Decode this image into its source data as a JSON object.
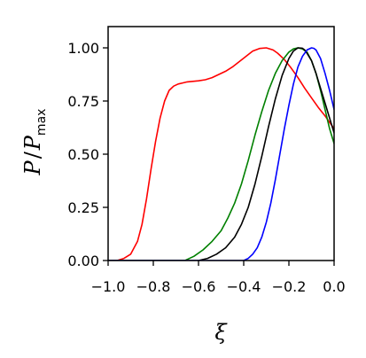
{
  "chart_data": {
    "type": "line",
    "xlabel": "ξ",
    "ylabel": {
      "main": "P",
      "sep": "/",
      "denom": "P",
      "sub": "max"
    },
    "xlim": [
      -1.0,
      0.0
    ],
    "ylim": [
      0.0,
      1.1
    ],
    "grid": false,
    "xticks": [
      {
        "value": -1.0,
        "label": "−1.0"
      },
      {
        "value": -0.8,
        "label": "−0.8"
      },
      {
        "value": -0.6,
        "label": "−0.6"
      },
      {
        "value": -0.4,
        "label": "−0.4"
      },
      {
        "value": -0.2,
        "label": "−0.2"
      },
      {
        "value": 0.0,
        "label": "0.0"
      }
    ],
    "yticks": [
      {
        "value": 0.0,
        "label": "0.00"
      },
      {
        "value": 0.25,
        "label": "0.25"
      },
      {
        "value": 0.5,
        "label": "0.50"
      },
      {
        "value": 0.75,
        "label": "0.75"
      },
      {
        "value": 1.0,
        "label": "1.00"
      }
    ],
    "series": [
      {
        "color": "#ff0000",
        "x": [
          -1.0,
          -0.96,
          -0.93,
          -0.9,
          -0.87,
          -0.85,
          -0.83,
          -0.81,
          -0.79,
          -0.77,
          -0.75,
          -0.73,
          -0.71,
          -0.69,
          -0.67,
          -0.65,
          -0.63,
          -0.6,
          -0.57,
          -0.54,
          -0.51,
          -0.48,
          -0.45,
          -0.42,
          -0.39,
          -0.36,
          -0.33,
          -0.3,
          -0.27,
          -0.25,
          -0.22,
          -0.19,
          -0.16,
          -0.13,
          -0.1,
          -0.07,
          -0.04,
          -0.02,
          0.0
        ],
        "y": [
          0.0,
          0.0,
          0.01,
          0.03,
          0.09,
          0.17,
          0.29,
          0.43,
          0.56,
          0.67,
          0.75,
          0.8,
          0.82,
          0.83,
          0.835,
          0.84,
          0.842,
          0.845,
          0.85,
          0.86,
          0.875,
          0.89,
          0.91,
          0.935,
          0.96,
          0.985,
          0.997,
          1.0,
          0.99,
          0.975,
          0.945,
          0.905,
          0.86,
          0.81,
          0.765,
          0.72,
          0.68,
          0.65,
          0.62
        ]
      },
      {
        "color": "#008000",
        "x": [
          -1.0,
          -0.66,
          -0.62,
          -0.58,
          -0.54,
          -0.5,
          -0.47,
          -0.44,
          -0.41,
          -0.38,
          -0.35,
          -0.32,
          -0.29,
          -0.26,
          -0.23,
          -0.2,
          -0.18,
          -0.16,
          -0.14,
          -0.12,
          -0.1,
          -0.08,
          -0.06,
          -0.04,
          -0.02,
          0.0
        ],
        "y": [
          0.0,
          0.0,
          0.02,
          0.05,
          0.09,
          0.14,
          0.2,
          0.27,
          0.36,
          0.47,
          0.59,
          0.7,
          0.8,
          0.88,
          0.94,
          0.98,
          0.995,
          1.0,
          0.995,
          0.98,
          0.94,
          0.88,
          0.8,
          0.71,
          0.62,
          0.55
        ]
      },
      {
        "color": "#000000",
        "x": [
          -1.0,
          -0.6,
          -0.56,
          -0.52,
          -0.48,
          -0.44,
          -0.41,
          -0.38,
          -0.35,
          -0.32,
          -0.29,
          -0.26,
          -0.23,
          -0.2,
          -0.18,
          -0.16,
          -0.14,
          -0.13,
          -0.12,
          -0.1,
          -0.08,
          -0.06,
          -0.04,
          -0.02,
          0.0
        ],
        "y": [
          0.0,
          0.0,
          0.01,
          0.03,
          0.06,
          0.11,
          0.17,
          0.25,
          0.36,
          0.49,
          0.63,
          0.76,
          0.87,
          0.95,
          0.985,
          1.0,
          0.998,
          0.99,
          0.975,
          0.94,
          0.88,
          0.81,
          0.74,
          0.67,
          0.6
        ]
      },
      {
        "color": "#0000ff",
        "x": [
          -1.0,
          -0.4,
          -0.38,
          -0.36,
          -0.34,
          -0.32,
          -0.3,
          -0.28,
          -0.26,
          -0.24,
          -0.22,
          -0.2,
          -0.18,
          -0.16,
          -0.14,
          -0.12,
          -0.1,
          -0.09,
          -0.08,
          -0.06,
          -0.04,
          -0.02,
          0.0
        ],
        "y": [
          0.0,
          0.0,
          0.01,
          0.03,
          0.06,
          0.11,
          0.18,
          0.27,
          0.38,
          0.5,
          0.62,
          0.73,
          0.83,
          0.91,
          0.96,
          0.99,
          1.0,
          0.998,
          0.99,
          0.95,
          0.88,
          0.8,
          0.71
        ]
      }
    ]
  }
}
